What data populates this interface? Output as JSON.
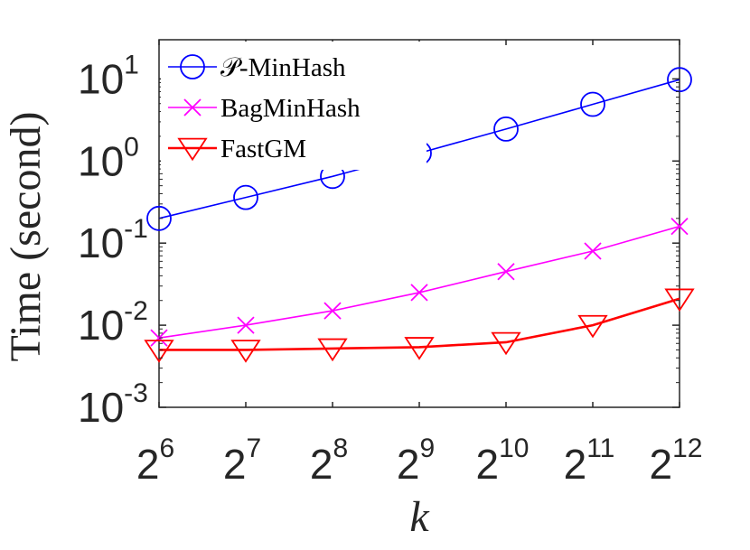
{
  "chart_data": {
    "type": "line",
    "xlabel": "k",
    "ylabel": "Time (second)",
    "x_scale": "log2",
    "y_scale": "log10",
    "x": [
      64,
      128,
      256,
      512,
      1024,
      2048,
      4096
    ],
    "x_tick_labels": [
      {
        "base": "2",
        "exp": "6"
      },
      {
        "base": "2",
        "exp": "7"
      },
      {
        "base": "2",
        "exp": "8"
      },
      {
        "base": "2",
        "exp": "9"
      },
      {
        "base": "2",
        "exp": "10"
      },
      {
        "base": "2",
        "exp": "11"
      },
      {
        "base": "2",
        "exp": "12"
      }
    ],
    "y_ticks": [
      0.001,
      0.01,
      0.1,
      1,
      10
    ],
    "y_tick_labels": [
      {
        "base": "10",
        "exp": "-3"
      },
      {
        "base": "10",
        "exp": "-2"
      },
      {
        "base": "10",
        "exp": "-1"
      },
      {
        "base": "10",
        "exp": "0"
      },
      {
        "base": "10",
        "exp": "1"
      }
    ],
    "xlim": [
      64,
      4096
    ],
    "ylim": [
      0.001,
      30
    ],
    "grid": false,
    "legend_position": "top-left",
    "series": [
      {
        "name": "𝒫-MinHash",
        "color": "#0000ff",
        "marker": "circle",
        "values": [
          0.2,
          0.36,
          0.65,
          1.25,
          2.45,
          4.9,
          9.8
        ]
      },
      {
        "name": "BagMinHash",
        "color": "#ff00ff",
        "marker": "x",
        "values": [
          0.007,
          0.01,
          0.015,
          0.025,
          0.045,
          0.08,
          0.16
        ]
      },
      {
        "name": "FastGM",
        "color": "#ff0000",
        "marker": "triangle-down",
        "values": [
          0.005,
          0.005,
          0.0052,
          0.0054,
          0.0062,
          0.01,
          0.021
        ]
      }
    ]
  }
}
